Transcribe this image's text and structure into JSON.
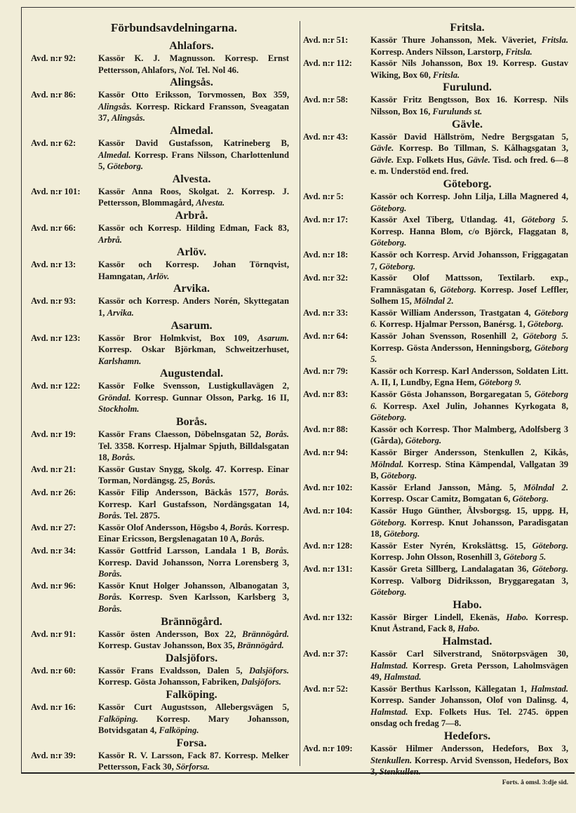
{
  "title": "Förbundsavdelningarna.",
  "footer": "Forts. å omsl. 3:dje sid.",
  "left": [
    {
      "place": "Ahlafors.",
      "entries": [
        {
          "nr": "Avd. n:r 92:",
          "parts": [
            "Kassör K. J. Magnusson. Korresp. Ernst Pettersson, Ahlafors, ",
            "Nol.",
            " Tel. Nol 46."
          ]
        }
      ]
    },
    {
      "place": "Alingsås.",
      "entries": [
        {
          "nr": "Avd. n:r 86:",
          "parts": [
            "Kassör Otto Eriksson, Torvmossen, Box 359, ",
            "Alingsås.",
            " Korresp. Rickard Fransson, Sveagatan 37, ",
            "Alingsås."
          ]
        }
      ]
    },
    {
      "place": "Almedal.",
      "entries": [
        {
          "nr": "Avd. n:r 62:",
          "parts": [
            "Kassör David Gustafsson, Katrineberg B, ",
            "Almedal.",
            " Korresp. Frans Nilsson, Charlottenlund 5, ",
            "Göteborg."
          ]
        }
      ]
    },
    {
      "place": "Alvesta.",
      "entries": [
        {
          "nr": "Avd. n:r 101:",
          "parts": [
            "Kassör Anna Roos, Skolgat. 2. Korresp. J. Pettersson, Blommagård, ",
            "Alvesta."
          ]
        }
      ]
    },
    {
      "place": "Arbrå.",
      "entries": [
        {
          "nr": "Avd. n:r 66:",
          "parts": [
            "Kassör och Korresp. Hilding Edman, Fack 83, ",
            "Arbrå."
          ]
        }
      ]
    },
    {
      "place": "Arlöv.",
      "entries": [
        {
          "nr": "Avd. n:r 13:",
          "parts": [
            "Kassör och Korresp. Johan Törnqvist, Hamngatan, ",
            "Arlöv."
          ]
        }
      ]
    },
    {
      "place": "Arvika.",
      "entries": [
        {
          "nr": "Avd. n:r 93:",
          "parts": [
            "Kassör och Korresp. Anders Norén, Skyttegatan 1, ",
            "Arvika."
          ]
        }
      ]
    },
    {
      "place": "Asarum.",
      "entries": [
        {
          "nr": "Avd. n:r 123:",
          "parts": [
            "Kassör Bror Holmkvist, Box 109, ",
            "Asarum.",
            " Korresp. Oskar Björkman, Schweitzerhuset, ",
            "Karlshamn."
          ]
        }
      ]
    },
    {
      "place": "Augustendal.",
      "entries": [
        {
          "nr": "Avd. n:r 122:",
          "parts": [
            "Kassör Folke Svensson, Lustigkullavägen 2, ",
            "Gröndal.",
            " Korresp. Gunnar Olsson, Parkg. 16 II, ",
            "Stockholm."
          ]
        }
      ]
    },
    {
      "place": "Borås.",
      "entries": [
        {
          "nr": "Avd. n:r 19:",
          "parts": [
            "Kassör Frans Claesson, Döbelnsgatan 52, ",
            "Borås.",
            " Tel. 3358. Korresp. Hjalmar Spjuth, Billdalsgatan 18, ",
            "Borås."
          ]
        },
        {
          "nr": "Avd. n:r 21:",
          "parts": [
            "Kassör Gustav Snygg, Skolg. 47. Korresp. Einar Torman, Nordängsg. 25, ",
            "Borås."
          ]
        },
        {
          "nr": "Avd. n:r 26:",
          "parts": [
            "Kassör Filip Andersson, Bäckås 1577, ",
            "Borås.",
            " Korresp. Karl Gustafsson, Nordängsgatan 14, ",
            "Borås.",
            " Tel. 2875."
          ]
        },
        {
          "nr": "Avd. n:r 27:",
          "parts": [
            "Kassör Olof Andersson, Högsbo 4, ",
            "Borås.",
            " Korresp. Einar Ericsson, Bergslenagatan 10 A, ",
            "Borås."
          ]
        },
        {
          "nr": "Avd. n:r 34:",
          "parts": [
            "Kassör Gottfrid Larsson, Landala 1 B, ",
            "Borås.",
            " Korresp. David Johansson, Norra Lorensberg 3, ",
            "Borås."
          ]
        },
        {
          "nr": "Avd. n:r 96:",
          "parts": [
            "Kassör Knut Holger Johansson, Albanogatan 3, ",
            "Borås.",
            " Korresp. Sven Karlsson, Karlsberg 3, ",
            "Borås."
          ]
        }
      ]
    },
    {
      "place": "Brännögård.",
      "entries": [
        {
          "nr": "Avd. n:r 91:",
          "parts": [
            "Kassör östen Andersson, Box 22, ",
            "Brännögård.",
            " Korresp. Gustav Johansson, Box 35, ",
            "Brännögård."
          ]
        }
      ]
    },
    {
      "place": "Dalsjöfors.",
      "entries": [
        {
          "nr": "Avd. n:r 60:",
          "parts": [
            "Kassör Frans Evaldsson, Dalen 5, ",
            "Dalsjöfors.",
            " Korresp. Gösta Johansson, Fabriken, ",
            "Dalsjöfors."
          ]
        }
      ]
    },
    {
      "place": "Falköping.",
      "entries": [
        {
          "nr": "Avd. n:r 16:",
          "parts": [
            "Kassör Curt Augustsson, Allebergsvägen 5, ",
            "Falköping.",
            " Korresp. Mary Johansson, Botvidsgatan 4, ",
            "Falköping."
          ]
        }
      ]
    },
    {
      "place": "Forsa.",
      "entries": [
        {
          "nr": "Avd. n:r 39:",
          "parts": [
            "Kassör R. V. Larsson, Fack 87. Korresp. Melker Pettersson, Fack 30, ",
            "Sörforsa."
          ]
        }
      ]
    }
  ],
  "right": [
    {
      "place": "Fritsla.",
      "entries": [
        {
          "nr": "Avd. n:r 51:",
          "parts": [
            "Kassör Thure Johansson, Mek. Väveriet, ",
            "Fritsla.",
            " Korresp. Anders Nilsson, Larstorp, ",
            "Fritsla."
          ]
        },
        {
          "nr": "Avd. n:r 112:",
          "parts": [
            "Kassör Nils Johansson, Box 19. Korresp. Gustav Wiking, Box 60, ",
            "Fritsla."
          ]
        }
      ]
    },
    {
      "place": "Furulund.",
      "entries": [
        {
          "nr": "Avd. n:r 58:",
          "parts": [
            "Kassör Fritz Bengtsson, Box 16. Korresp. Nils Nilsson, Box 16, ",
            "Furulunds st."
          ]
        }
      ]
    },
    {
      "place": "Gävle.",
      "entries": [
        {
          "nr": "Avd. n:r 43:",
          "parts": [
            "Kassör David Hällström, Nedre Bergsgatan 5, ",
            "Gävle.",
            " Korresp. Bo Tillman, S. Kålhagsgatan 3, ",
            "Gävle.",
            " Exp. Folkets Hus, ",
            "Gävle.",
            " Tisd. och fred. 6—8 e. m. Understöd end. fred."
          ]
        }
      ]
    },
    {
      "place": "Göteborg.",
      "entries": [
        {
          "nr": "Avd. n:r 5:",
          "parts": [
            "Kassör och Korresp. John Lilja, Lilla Magnered 4, ",
            "Göteborg."
          ]
        },
        {
          "nr": "Avd. n:r 17:",
          "parts": [
            "Kassör Axel Tiberg, Utlandag. 41, ",
            "Göteborg 5.",
            " Korresp. Hanna Blom, c/o Björck, Flaggatan 8, ",
            "Göteborg."
          ]
        },
        {
          "nr": "Avd. n:r 18:",
          "parts": [
            "Kassör och Korresp. Arvid Johansson, Friggagatan 7, ",
            "Göteborg."
          ]
        },
        {
          "nr": "Avd. n:r 32:",
          "parts": [
            "Kassör Olof Mattsson, Textilarb. exp., Framnäsgatan 6, ",
            "Göteborg.",
            " Korresp. Josef Leffler, Solhem 15, ",
            "Mölndal 2."
          ]
        },
        {
          "nr": "Avd. n:r 33:",
          "parts": [
            "Kassör William Andersson, Trastgatan 4, ",
            "Göteborg 6.",
            " Korresp. Hjalmar Persson, Banérsg. 1, ",
            "Göteborg."
          ]
        },
        {
          "nr": "Avd. n:r 64:",
          "parts": [
            "Kassör Johan Svensson, Rosenhill 2, ",
            "Göteborg 5.",
            " Korresp. Gösta Andersson, Henningsborg, ",
            "Göteborg 5."
          ]
        },
        {
          "nr": "Avd. n:r 79:",
          "parts": [
            "Kassör och Korresp. Karl Andersson, Soldaten Litt. A. II, I, Lundby, Egna Hem, ",
            "Göteborg 9."
          ]
        },
        {
          "nr": "Avd. n:r 83:",
          "parts": [
            "Kassör Gösta Johansson, Borgaregatan 5, ",
            "Göteborg 6.",
            " Korresp. Axel Julin, Johannes Kyrkogata 8, ",
            "Göteborg."
          ]
        },
        {
          "nr": "Avd. n:r 88:",
          "parts": [
            "Kassör och Korresp. Thor Malmberg, Adolfsberg 3 (Gårda), ",
            "Göteborg."
          ]
        },
        {
          "nr": "Avd. n:r 94:",
          "parts": [
            "Kassör Birger Andersson, Stenkullen 2, Kikås, ",
            "Mölndal.",
            " Korresp. Stina Kämpendal, Vallgatan 39 B, ",
            "Göteborg."
          ]
        },
        {
          "nr": "Avd. n:r 102:",
          "parts": [
            "Kassör Erland Jansson, Mång. 5, ",
            "Mölndal 2.",
            " Korresp. Oscar Camitz, Bomgatan 6, ",
            "Göteborg."
          ]
        },
        {
          "nr": "Avd. n:r 104:",
          "parts": [
            "Kassör Hugo Günther, Älvsborgsg. 15, uppg. H, ",
            "Göteborg.",
            " Korresp. Knut Johansson, Paradisgatan 18, ",
            "Göteborg."
          ]
        },
        {
          "nr": "Avd. n:r 128:",
          "parts": [
            "Kassör Ester Nyrén, Krokslättsg. 15, ",
            "Göteborg.",
            " Korresp. John Olsson, Rosenhill 3, ",
            "Göteborg 5."
          ]
        },
        {
          "nr": "Avd. n:r 131:",
          "parts": [
            "Kassör Greta Sillberg, Landalagatan 36, ",
            "Göteborg.",
            " Korresp. Valborg Didriksson, Bryggaregatan 3, ",
            "Göteborg."
          ]
        }
      ]
    },
    {
      "place": "Habo.",
      "entries": [
        {
          "nr": "Avd. n:r 132:",
          "parts": [
            "Kassör Birger Lindell, Ekenäs, ",
            "Habo.",
            " Korresp. Knut Åstrand, Fack 8, ",
            "Habo."
          ]
        }
      ]
    },
    {
      "place": "Halmstad.",
      "entries": [
        {
          "nr": "Avd. n:r 37:",
          "parts": [
            "Kassör Carl Silverstrand, Snötorpsvägen 30, ",
            "Halmstad.",
            " Korresp. Greta Persson, Laholmsvägen 49, ",
            "Halmstad."
          ]
        },
        {
          "nr": "Avd. n:r 52:",
          "parts": [
            "Kassör Berthus Karlsson, Källegatan 1, ",
            "Halmstad.",
            " Korresp. Sander Johansson, Olof von Dalinsg. 4, ",
            "Halmstad.",
            " Exp. Folkets Hus. Tel. 2745. öppen onsdag och fredag 7—8."
          ]
        }
      ]
    },
    {
      "place": "Hedefors.",
      "entries": [
        {
          "nr": "Avd. n:r 109:",
          "parts": [
            "Kassör Hilmer Andersson, Hedefors, Box 3, ",
            "Stenkullen.",
            " Korresp. Arvid Svensson, Hedefors, Box 3, ",
            "Stenkullen."
          ]
        }
      ]
    }
  ]
}
